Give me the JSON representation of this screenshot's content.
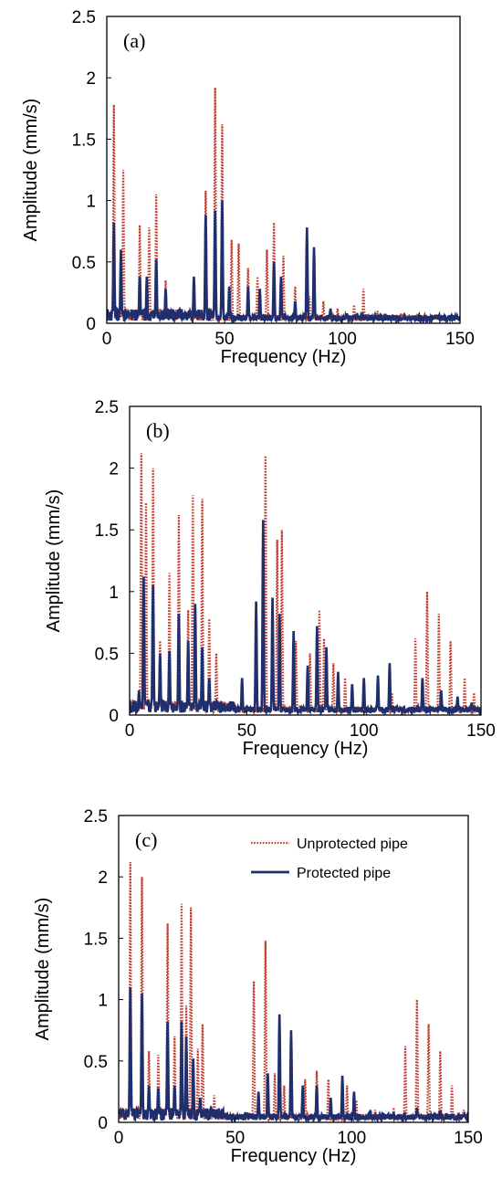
{
  "colors": {
    "unprotected": "#c0392b",
    "protected": "#1f2f6e",
    "axis": "#000000"
  },
  "chart_data": [
    {
      "type": "line",
      "panel_label": "(a)",
      "xlabel": "Frequency (Hz)",
      "ylabel": "Amplitude (mm/s)",
      "xlim": [
        0,
        150
      ],
      "ylim": [
        0,
        2.5
      ],
      "xticks": [
        "0",
        "50",
        "100",
        "150"
      ],
      "yticks": [
        "0",
        "0.5",
        "1",
        "1.5",
        "2",
        "2.5"
      ],
      "legend": null,
      "series": [
        {
          "name": "Unprotected pipe",
          "style": "dotted",
          "peaks": [
            [
              3,
              1.78
            ],
            [
              7,
              1.25
            ],
            [
              14,
              0.8
            ],
            [
              18,
              0.78
            ],
            [
              21,
              1.05
            ],
            [
              25,
              0.35
            ],
            [
              42,
              1.08
            ],
            [
              46,
              1.92
            ],
            [
              49,
              1.62
            ],
            [
              53,
              0.68
            ],
            [
              56,
              0.65
            ],
            [
              60,
              0.45
            ],
            [
              64,
              0.38
            ],
            [
              68,
              0.6
            ],
            [
              71,
              0.82
            ],
            [
              75,
              0.55
            ],
            [
              80,
              0.3
            ],
            [
              86,
              0.22
            ],
            [
              92,
              0.18
            ],
            [
              98,
              0.12
            ],
            [
              105,
              0.15
            ],
            [
              109,
              0.28
            ],
            [
              115,
              0.1
            ],
            [
              125,
              0.08
            ],
            [
              135,
              0.07
            ],
            [
              145,
              0.06
            ]
          ]
        },
        {
          "name": "Protected pipe",
          "style": "solid",
          "peaks": [
            [
              3,
              0.82
            ],
            [
              6,
              0.6
            ],
            [
              14,
              0.38
            ],
            [
              17,
              0.38
            ],
            [
              21,
              0.52
            ],
            [
              25,
              0.28
            ],
            [
              37,
              0.38
            ],
            [
              42,
              0.88
            ],
            [
              46,
              0.92
            ],
            [
              49,
              1.0
            ],
            [
              52,
              0.3
            ],
            [
              60,
              0.3
            ],
            [
              65,
              0.28
            ],
            [
              71,
              0.5
            ],
            [
              74,
              0.38
            ],
            [
              80,
              0.18
            ],
            [
              85,
              0.78
            ],
            [
              88,
              0.62
            ],
            [
              95,
              0.12
            ],
            [
              102,
              0.08
            ],
            [
              110,
              0.07
            ],
            [
              120,
              0.06
            ],
            [
              130,
              0.05
            ],
            [
              140,
              0.05
            ],
            [
              148,
              0.06
            ]
          ]
        }
      ]
    },
    {
      "type": "line",
      "panel_label": "(b)",
      "xlabel": "Frequency (Hz)",
      "ylabel": "Amplitude (mm/s)",
      "xlim": [
        0,
        150
      ],
      "ylim": [
        0,
        2.5
      ],
      "xticks": [
        "0",
        "50",
        "100",
        "150"
      ],
      "yticks": [
        "0",
        "0.5",
        "1",
        "1.5",
        "2",
        "2.5"
      ],
      "legend": null,
      "series": [
        {
          "name": "Unprotected pipe",
          "style": "dotted",
          "peaks": [
            [
              5,
              2.12
            ],
            [
              7,
              1.72
            ],
            [
              10,
              2.0
            ],
            [
              13,
              0.6
            ],
            [
              17,
              1.15
            ],
            [
              21,
              1.62
            ],
            [
              25,
              0.85
            ],
            [
              27,
              1.78
            ],
            [
              31,
              1.75
            ],
            [
              34,
              0.78
            ],
            [
              37,
              0.5
            ],
            [
              58,
              2.1
            ],
            [
              61,
              0.95
            ],
            [
              63,
              1.42
            ],
            [
              65,
              1.5
            ],
            [
              71,
              0.6
            ],
            [
              77,
              0.5
            ],
            [
              81,
              0.85
            ],
            [
              83,
              0.62
            ],
            [
              87,
              0.42
            ],
            [
              92,
              0.3
            ],
            [
              100,
              0.2
            ],
            [
              106,
              0.22
            ],
            [
              112,
              0.18
            ],
            [
              122,
              0.62
            ],
            [
              127,
              1.0
            ],
            [
              132,
              0.82
            ],
            [
              137,
              0.6
            ],
            [
              143,
              0.3
            ],
            [
              147,
              0.18
            ]
          ]
        },
        {
          "name": "Protected pipe",
          "style": "solid",
          "peaks": [
            [
              4,
              0.2
            ],
            [
              6,
              1.12
            ],
            [
              10,
              1.05
            ],
            [
              13,
              0.5
            ],
            [
              17,
              0.52
            ],
            [
              21,
              0.82
            ],
            [
              25,
              0.6
            ],
            [
              28,
              0.9
            ],
            [
              31,
              0.55
            ],
            [
              34,
              0.3
            ],
            [
              48,
              0.3
            ],
            [
              54,
              0.92
            ],
            [
              57,
              1.58
            ],
            [
              61,
              0.95
            ],
            [
              64,
              0.82
            ],
            [
              70,
              0.68
            ],
            [
              76,
              0.4
            ],
            [
              80,
              0.72
            ],
            [
              84,
              0.55
            ],
            [
              89,
              0.35
            ],
            [
              95,
              0.25
            ],
            [
              100,
              0.3
            ],
            [
              106,
              0.32
            ],
            [
              111,
              0.42
            ],
            [
              125,
              0.3
            ],
            [
              133,
              0.2
            ],
            [
              140,
              0.15
            ],
            [
              146,
              0.1
            ]
          ]
        }
      ]
    },
    {
      "type": "line",
      "panel_label": "(c)",
      "xlabel": "Frequency (Hz)",
      "ylabel": "Amplitude (mm/s)",
      "xlim": [
        0,
        150
      ],
      "ylim": [
        0,
        2.5
      ],
      "xticks": [
        "0",
        "50",
        "100",
        "150"
      ],
      "yticks": [
        "0",
        "0.5",
        "1",
        "1.5",
        "2",
        "2.5"
      ],
      "legend": {
        "position": "top-right"
      },
      "series": [
        {
          "name": "Unprotected pipe",
          "style": "dotted",
          "peaks": [
            [
              5,
              2.12
            ],
            [
              10,
              2.0
            ],
            [
              13,
              0.58
            ],
            [
              17,
              0.55
            ],
            [
              21,
              1.62
            ],
            [
              24,
              0.7
            ],
            [
              27,
              1.78
            ],
            [
              29,
              0.95
            ],
            [
              31,
              1.75
            ],
            [
              34,
              0.6
            ],
            [
              36,
              0.8
            ],
            [
              41,
              0.22
            ],
            [
              58,
              1.15
            ],
            [
              63,
              1.48
            ],
            [
              67,
              0.4
            ],
            [
              71,
              0.3
            ],
            [
              80,
              0.35
            ],
            [
              85,
              0.42
            ],
            [
              90,
              0.35
            ],
            [
              98,
              0.3
            ],
            [
              102,
              0.18
            ],
            [
              110,
              0.1
            ],
            [
              118,
              0.12
            ],
            [
              123,
              0.62
            ],
            [
              128,
              1.0
            ],
            [
              133,
              0.8
            ],
            [
              138,
              0.58
            ],
            [
              143,
              0.3
            ],
            [
              148,
              0.1
            ]
          ]
        },
        {
          "name": "Protected pipe",
          "style": "solid",
          "peaks": [
            [
              5,
              1.1
            ],
            [
              10,
              1.05
            ],
            [
              13,
              0.3
            ],
            [
              17,
              0.28
            ],
            [
              21,
              0.82
            ],
            [
              24,
              0.3
            ],
            [
              27,
              0.82
            ],
            [
              29,
              0.7
            ],
            [
              32,
              0.52
            ],
            [
              35,
              0.2
            ],
            [
              40,
              0.1
            ],
            [
              49,
              0.05
            ],
            [
              55,
              0.08
            ],
            [
              60,
              0.25
            ],
            [
              64,
              0.4
            ],
            [
              69,
              0.88
            ],
            [
              74,
              0.75
            ],
            [
              79,
              0.3
            ],
            [
              85,
              0.3
            ],
            [
              91,
              0.2
            ],
            [
              96,
              0.38
            ],
            [
              101,
              0.25
            ],
            [
              108,
              0.1
            ],
            [
              118,
              0.08
            ],
            [
              128,
              0.12
            ],
            [
              138,
              0.1
            ],
            [
              146,
              0.06
            ]
          ]
        }
      ]
    }
  ]
}
